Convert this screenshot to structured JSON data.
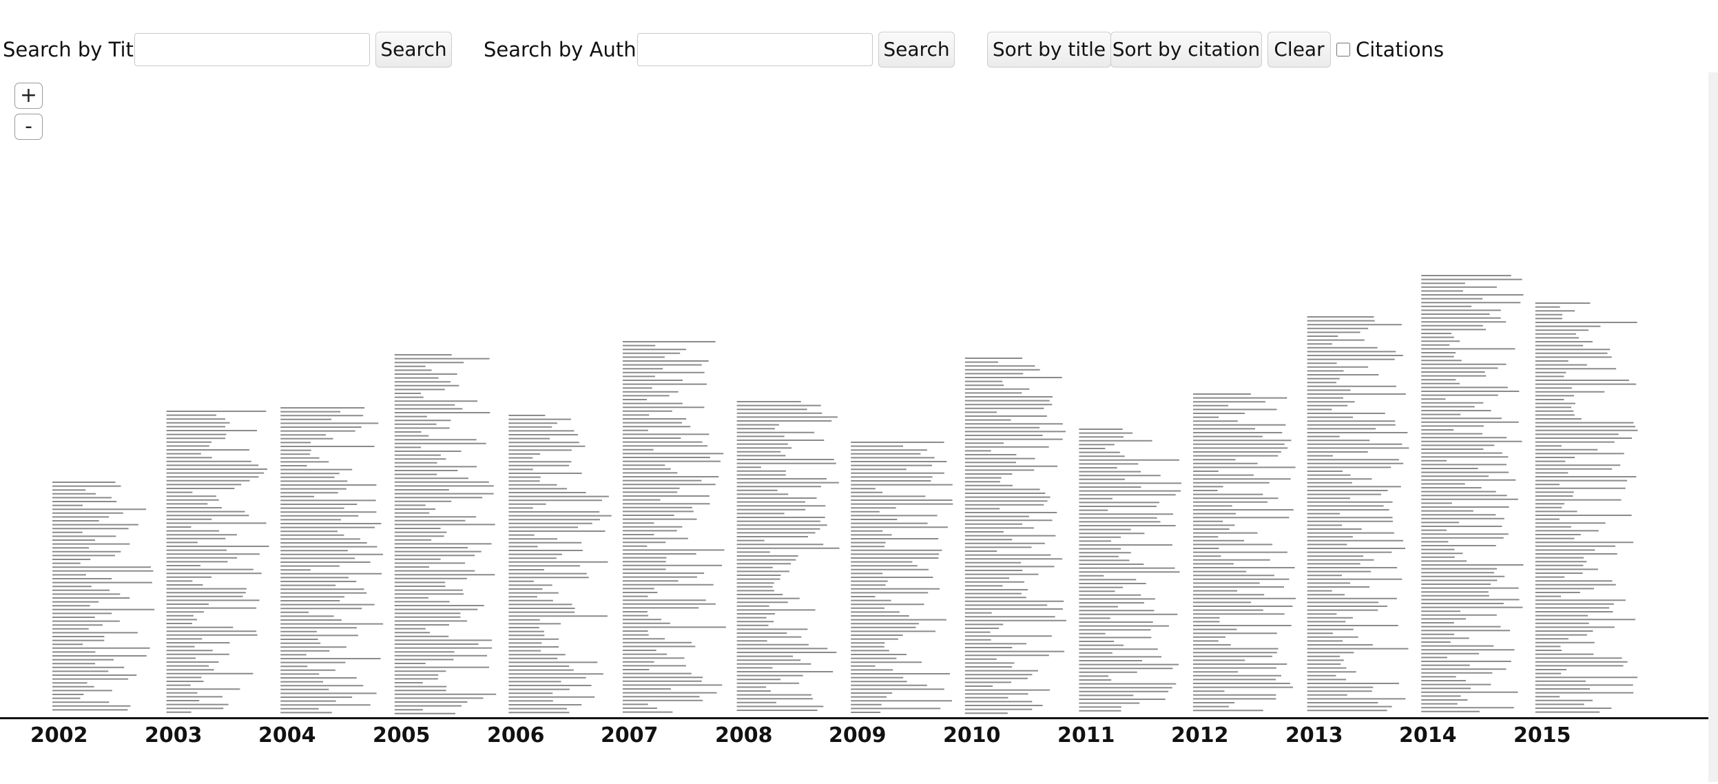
{
  "toolbar": {
    "title_label": "Search by Title",
    "title_value": "",
    "search_title_button": "Search",
    "author_label": "Search by Author",
    "author_value": "",
    "search_author_button": "Search",
    "sort_title_button": "Sort by title",
    "sort_citation_button": "Sort by citation",
    "clear_button": "Clear",
    "citations_label": "Citations",
    "citations_checked": false
  },
  "zoom": {
    "in_label": "+",
    "out_label": "-"
  },
  "timeline": {
    "years": [
      "2002",
      "2003",
      "2004",
      "2005",
      "2006",
      "2007",
      "2008",
      "2009",
      "2010",
      "2011",
      "2012",
      "2013",
      "2014",
      "2015"
    ]
  }
}
